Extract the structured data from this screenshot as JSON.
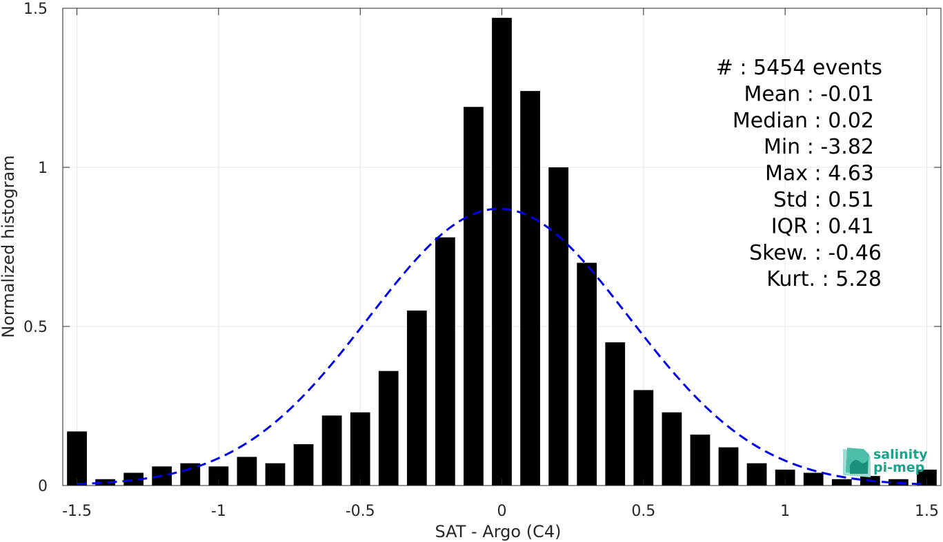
{
  "chart_data": {
    "type": "bar",
    "xlabel": "SAT - Argo (C4)",
    "ylabel": "Normalized histogram",
    "xlim": [
      -1.55,
      1.55
    ],
    "ylim": [
      0,
      1.5
    ],
    "grid": true,
    "x_ticks": [
      -1.5,
      -1,
      -0.5,
      0,
      0.5,
      1,
      1.5
    ],
    "x_tick_labels": [
      "-1.5",
      "-1",
      "-0.5",
      "0",
      "0.5",
      "1",
      "1.5"
    ],
    "y_ticks": [
      0,
      0.5,
      1,
      1.5
    ],
    "y_tick_labels": [
      "0",
      "0.5",
      "1",
      "1.5"
    ],
    "bar_width": 0.07,
    "bar_color": "#000000",
    "bins": [
      -1.5,
      -1.4,
      -1.3,
      -1.2,
      -1.1,
      -1.0,
      -0.9,
      -0.8,
      -0.7,
      -0.6,
      -0.5,
      -0.4,
      -0.3,
      -0.2,
      -0.1,
      0.0,
      0.1,
      0.2,
      0.3,
      0.4,
      0.5,
      0.6,
      0.7,
      0.8,
      0.9,
      1.0,
      1.1,
      1.2,
      1.3,
      1.4,
      1.5
    ],
    "values": [
      0.17,
      0.02,
      0.04,
      0.06,
      0.07,
      0.06,
      0.09,
      0.07,
      0.13,
      0.22,
      0.23,
      0.36,
      0.55,
      0.78,
      1.19,
      1.47,
      1.24,
      1.0,
      0.7,
      0.45,
      0.3,
      0.23,
      0.16,
      0.12,
      0.07,
      0.05,
      0.04,
      0.02,
      0.03,
      0.02,
      0.05
    ],
    "fit_curve": {
      "style": "dashed",
      "color": "#0000e6",
      "mean": -0.01,
      "std": 0.46,
      "peak": 0.87,
      "x_range": [
        -1.5,
        1.5
      ]
    },
    "stats": [
      {
        "key": "count",
        "text": "#  : 5454 events"
      },
      {
        "key": "mean",
        "text": "Mean : -0.01"
      },
      {
        "key": "median",
        "text": "Median : 0.02"
      },
      {
        "key": "min",
        "text": "Min : -3.82"
      },
      {
        "key": "max",
        "text": "Max : 4.63"
      },
      {
        "key": "std",
        "text": "Std : 0.51"
      },
      {
        "key": "iqr",
        "text": "IQR : 0.41"
      },
      {
        "key": "skew",
        "text": "Skew. : -0.46"
      },
      {
        "key": "kurt",
        "text": "Kurt. : 5.28"
      }
    ]
  },
  "logo": {
    "line1": "salinity",
    "line2": "pi-mep",
    "color": "#1aa38a"
  }
}
